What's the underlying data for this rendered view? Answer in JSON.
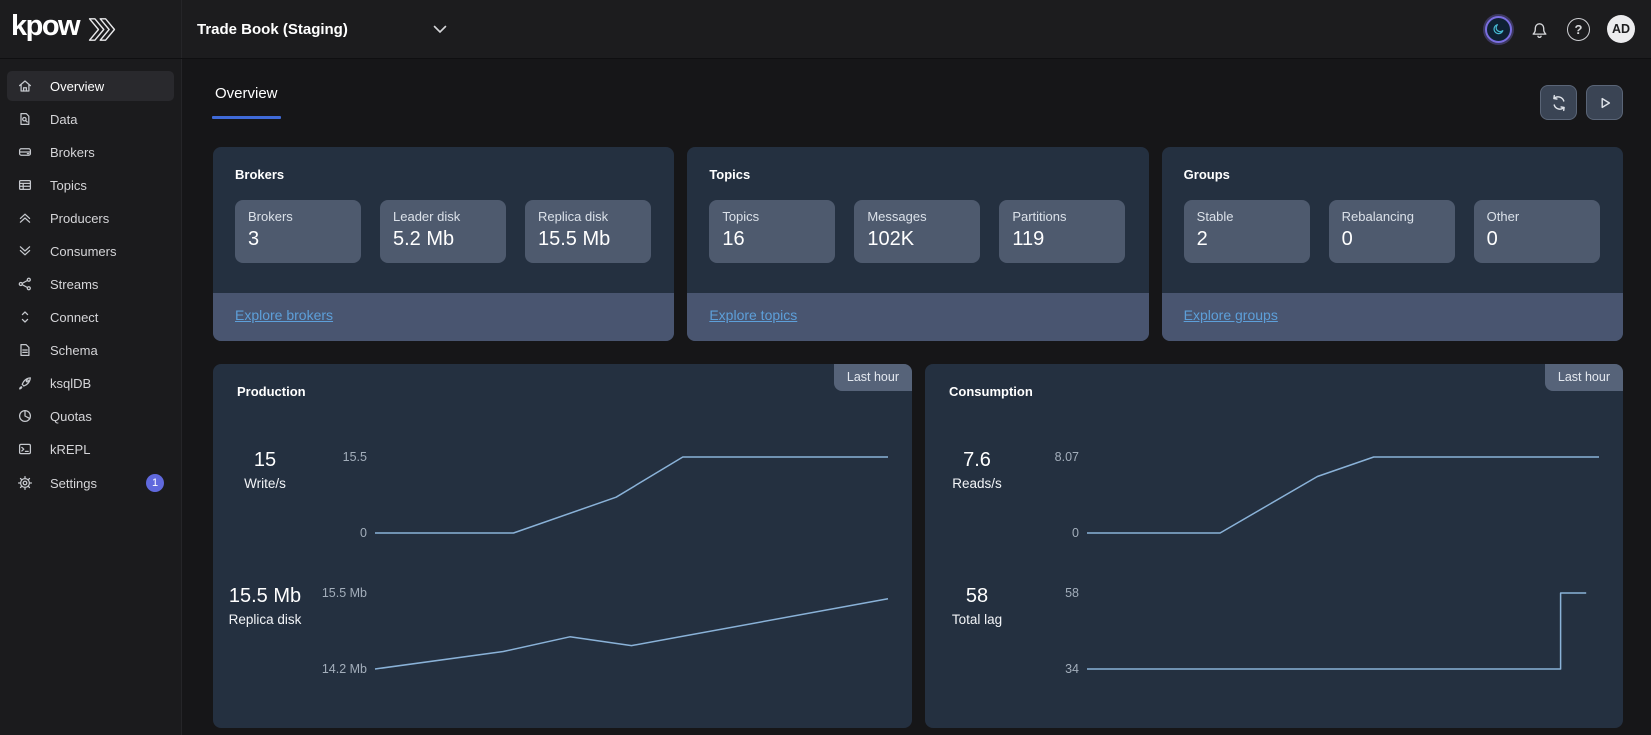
{
  "topbar": {
    "logo_text": "kpow",
    "cluster_selector": "Trade Book (Staging)",
    "help_glyph": "?",
    "avatar_initials": "AD"
  },
  "sidebar": {
    "items": [
      {
        "label": "Overview",
        "icon": "home-icon",
        "active": true
      },
      {
        "label": "Data",
        "icon": "document-search-icon"
      },
      {
        "label": "Brokers",
        "icon": "server-disk-icon"
      },
      {
        "label": "Topics",
        "icon": "table-grid-icon"
      },
      {
        "label": "Producers",
        "icon": "chevrons-up-icon"
      },
      {
        "label": "Consumers",
        "icon": "chevrons-down-icon"
      },
      {
        "label": "Streams",
        "icon": "share-nodes-icon"
      },
      {
        "label": "Connect",
        "icon": "sort-arrows-icon"
      },
      {
        "label": "Schema",
        "icon": "document-lines-icon"
      },
      {
        "label": "ksqlDB",
        "icon": "rocket-icon"
      },
      {
        "label": "Quotas",
        "icon": "pie-chart-icon"
      },
      {
        "label": "kREPL",
        "icon": "terminal-icon"
      },
      {
        "label": "Settings",
        "icon": "gear-icon",
        "badge": "1"
      }
    ]
  },
  "header": {
    "tab_label": "Overview"
  },
  "summary_cards": [
    {
      "title": "Brokers",
      "stats": [
        {
          "label": "Brokers",
          "value": "3"
        },
        {
          "label": "Leader disk",
          "value": "5.2 Mb"
        },
        {
          "label": "Replica disk",
          "value": "15.5 Mb"
        }
      ],
      "link": "Explore brokers"
    },
    {
      "title": "Topics",
      "stats": [
        {
          "label": "Topics",
          "value": "16"
        },
        {
          "label": "Messages",
          "value": "102K"
        },
        {
          "label": "Partitions",
          "value": "119"
        }
      ],
      "link": "Explore topics"
    },
    {
      "title": "Groups",
      "stats": [
        {
          "label": "Stable",
          "value": "2"
        },
        {
          "label": "Rebalancing",
          "value": "0"
        },
        {
          "label": "Other",
          "value": "0"
        }
      ],
      "link": "Explore groups"
    }
  ],
  "chart_cards": [
    {
      "title": "Production",
      "badge": "Last hour",
      "rows": [
        {
          "stat_value": "15",
          "stat_label": "Write/s"
        },
        {
          "stat_value": "15.5 Mb",
          "stat_label": "Replica disk"
        }
      ]
    },
    {
      "title": "Consumption",
      "badge": "Last hour",
      "rows": [
        {
          "stat_value": "7.6",
          "stat_label": "Reads/s"
        },
        {
          "stat_value": "58",
          "stat_label": "Total lag"
        }
      ]
    }
  ],
  "chart_data": [
    {
      "type": "line",
      "title": "Production Write/s",
      "ylabel": "Write/s",
      "x_range": "last hour",
      "grid": false,
      "legend": false,
      "ylim": [
        0,
        15.5
      ],
      "y_axis_labels": {
        "max": "15.5",
        "min": "0"
      },
      "x": [
        0,
        0.27,
        0.47,
        0.6,
        1.0
      ],
      "values": [
        0,
        0,
        7.3,
        15.5,
        15.5
      ]
    },
    {
      "type": "line",
      "title": "Production Replica disk",
      "ylabel": "Replica disk",
      "x_range": "last hour",
      "grid": false,
      "legend": false,
      "ylim": [
        14.2,
        15.5
      ],
      "y_axis_labels": {
        "max": "15.5 Mb",
        "min": "14.2 Mb"
      },
      "x": [
        0,
        0.25,
        0.38,
        0.5,
        1.0
      ],
      "values": [
        14.2,
        14.5,
        14.75,
        14.6,
        15.4
      ]
    },
    {
      "type": "line",
      "title": "Consumption Reads/s",
      "ylabel": "Reads/s",
      "x_range": "last hour",
      "grid": false,
      "legend": false,
      "ylim": [
        0,
        8.07
      ],
      "y_axis_labels": {
        "max": "8.07",
        "min": "0"
      },
      "x": [
        0,
        0.26,
        0.45,
        0.56,
        1.0
      ],
      "values": [
        0,
        0,
        6.0,
        8.07,
        8.07
      ]
    },
    {
      "type": "line",
      "title": "Consumption Total lag",
      "ylabel": "Total lag",
      "x_range": "last hour",
      "grid": false,
      "legend": false,
      "ylim": [
        34,
        58
      ],
      "y_axis_labels": {
        "max": "58",
        "min": "34"
      },
      "x": [
        0,
        0.925,
        0.925,
        0.975
      ],
      "values": [
        34,
        34,
        58,
        58
      ]
    }
  ],
  "colors": {
    "accent_blue": "#3f6ad8",
    "link_blue": "#5d9fd9",
    "chart_line": "#8ab2d8",
    "axis_label": "#a3aebb",
    "badge_indigo": "#6069dd",
    "card_bg": "#243040",
    "tile_bg": "#4e5a6e",
    "footer_bg": "#495570"
  }
}
